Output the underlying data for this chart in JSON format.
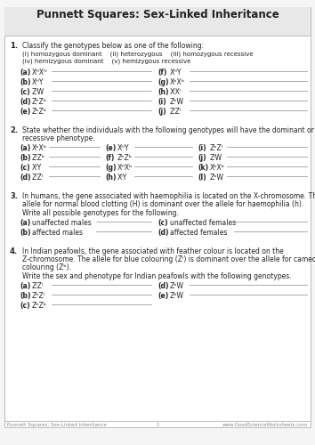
{
  "title": "Punnett Squares: Sex-Linked Inheritance",
  "footer_left": "Punnett Squares: Sex-Linked Inheritance",
  "footer_center": "1",
  "footer_right": "www.GoodScienceWorksheets.com",
  "bg_header": "#e8e8e8",
  "bg_body": "#f5f5f5",
  "border_color": "#bbbbbb",
  "line_color": "#999999",
  "text_color": "#222222",
  "gray_color": "#777777"
}
